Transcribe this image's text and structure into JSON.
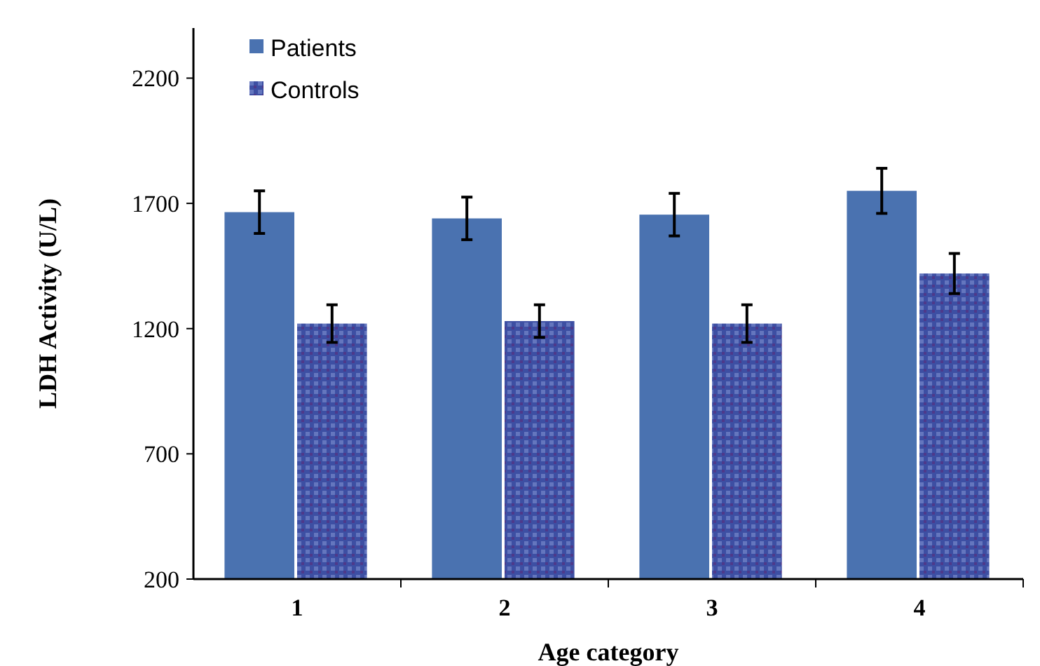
{
  "chart_data": {
    "type": "bar",
    "xlabel": "Age category",
    "ylabel": "LDH Activity (U/L)",
    "categories": [
      "1",
      "2",
      "3",
      "4"
    ],
    "series": [
      {
        "name": "Patients",
        "color": "#4a72b0",
        "values": [
          1665,
          1640,
          1655,
          1750
        ],
        "errors": [
          85,
          85,
          85,
          90
        ]
      },
      {
        "name": "Controls",
        "color": "#3d4fa3",
        "values": [
          1220,
          1230,
          1220,
          1420
        ],
        "errors": [
          75,
          65,
          75,
          80
        ]
      }
    ],
    "ylim": [
      200,
      2400
    ],
    "yticks": [
      200,
      700,
      1200,
      1700,
      2200
    ],
    "grid": false,
    "legend": "top left"
  }
}
